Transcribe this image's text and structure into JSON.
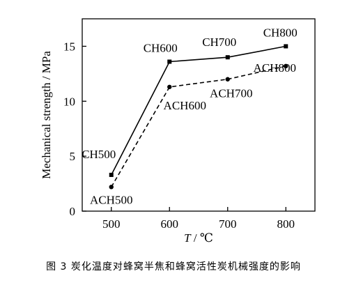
{
  "chart_data": {
    "type": "line",
    "xlabel_var": "T",
    "xlabel_unit": " / ℃",
    "ylabel": "Mechanical strength / MPa",
    "x": [
      500,
      600,
      700,
      800
    ],
    "xlim": [
      450,
      850
    ],
    "ylim": [
      0,
      17.5
    ],
    "xticks": [
      500,
      600,
      700,
      800
    ],
    "yticks": [
      0,
      5,
      10,
      15
    ],
    "grid": false,
    "series": [
      {
        "values": [
          3.3,
          13.6,
          14.0,
          15.0
        ],
        "labels": [
          "CH500",
          "CH600",
          "CH700",
          "CH800"
        ],
        "line_style": "solid",
        "marker": "square",
        "color": "#000000"
      },
      {
        "values": [
          2.2,
          11.3,
          12.0,
          13.2
        ],
        "labels": [
          "ACH500",
          "ACH600",
          "ACH700",
          "ACH800"
        ],
        "line_style": "dashed",
        "marker": "circle",
        "color": "#000000"
      }
    ]
  },
  "caption": "图  3  炭化温度对蜂窝半焦和蜂窝活性炭机械强度的影响"
}
